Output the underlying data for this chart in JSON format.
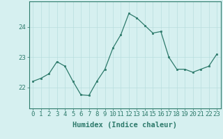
{
  "x": [
    0,
    1,
    2,
    3,
    4,
    5,
    6,
    7,
    8,
    9,
    10,
    11,
    12,
    13,
    14,
    15,
    16,
    17,
    18,
    19,
    20,
    21,
    22,
    23
  ],
  "y": [
    22.2,
    22.3,
    22.45,
    22.85,
    22.7,
    22.2,
    21.75,
    21.73,
    22.2,
    22.6,
    23.3,
    23.75,
    24.45,
    24.3,
    24.05,
    23.8,
    23.85,
    23.0,
    22.6,
    22.6,
    22.5,
    22.6,
    22.7,
    23.1
  ],
  "line_color": "#2d7a6b",
  "marker_color": "#2d7a6b",
  "bg_color": "#d6f0f0",
  "grid_color": "#b8dede",
  "axis_color": "#2d7a6b",
  "tick_color": "#2d7a6b",
  "xlabel": "Humidex (Indice chaleur)",
  "yticks": [
    22,
    23,
    24
  ],
  "xlim": [
    -0.5,
    23.5
  ],
  "ylim": [
    21.3,
    24.85
  ],
  "xlabel_fontsize": 7.5,
  "tick_fontsize": 6.5
}
